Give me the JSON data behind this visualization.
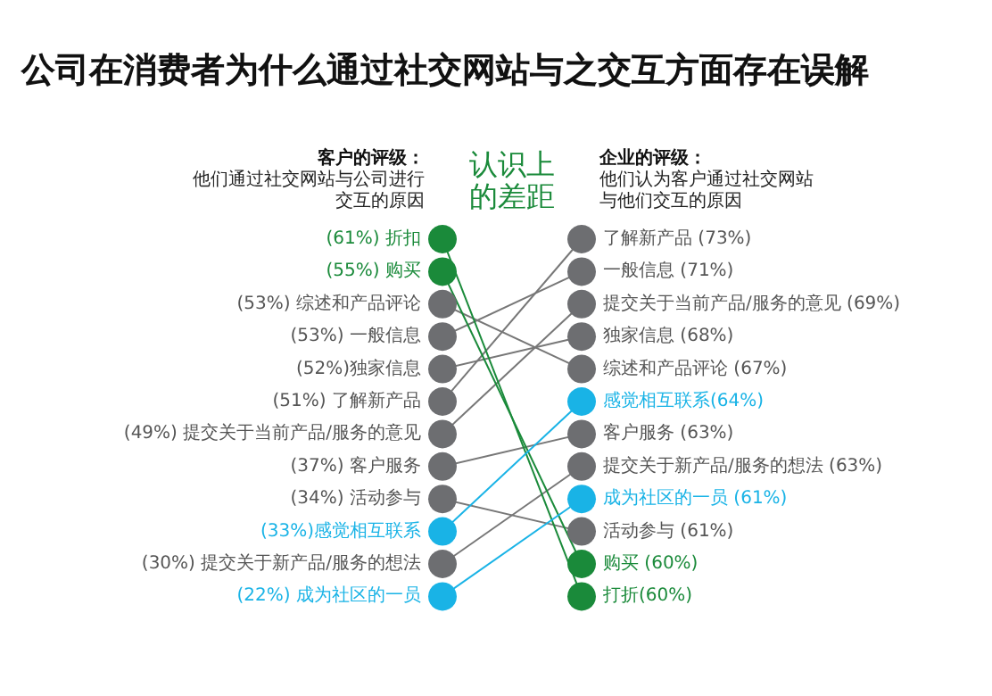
{
  "chart_data": {
    "type": "other",
    "title": "公司在消费者为什么通过社交网站与之交互方面存在误解",
    "categories": [
      "客户的评级：他们通过社交网站与公司进行交互的原因",
      "企业的评级：他们认为客户通过社交网站与他们交互的原因"
    ],
    "annotations": [
      "认识上的差距"
    ],
    "series": [
      {
        "color": "#1a8a3a",
        "values": [
          55,
          60
        ],
        "value_labels": [
          "(55%) 购买",
          "购买 (60%)"
        ]
      },
      {
        "color": "#1a8a3a",
        "values": [
          61,
          60
        ],
        "value_labels": [
          "(61%) 折扣",
          "打折(60%)"
        ]
      },
      {
        "color": "#6d6e71",
        "values": [
          53,
          67
        ],
        "value_labels": [
          "(53%) 综述和产品评论",
          "综述和产品评论 (67%)"
        ]
      },
      {
        "color": "#6d6e71",
        "values": [
          53,
          71
        ],
        "value_labels": [
          "(53%) 一般信息",
          "一般信息 (71%)"
        ]
      },
      {
        "color": "#6d6e71",
        "values": [
          52,
          68
        ],
        "value_labels": [
          "(52%)独家信息",
          "独家信息 (68%)"
        ]
      },
      {
        "color": "#6d6e71",
        "values": [
          51,
          73
        ],
        "value_labels": [
          "(51%) 了解新产品",
          "了解新产品 (73%)"
        ]
      },
      {
        "color": "#6d6e71",
        "values": [
          49,
          69
        ],
        "value_labels": [
          "(49%) 提交关于当前产品/服务的意见",
          "提交关于当前产品/服务的意见 (69%)"
        ]
      },
      {
        "color": "#6d6e71",
        "values": [
          37,
          63
        ],
        "value_labels": [
          "(37%) 客户服务",
          "客户服务 (63%)"
        ]
      },
      {
        "color": "#19b3e6",
        "values": [
          22,
          61
        ],
        "value_labels": [
          "(22%) 成为社区的一员",
          "成为社区的一员 (61%)"
        ]
      },
      {
        "color": "#6d6e71",
        "values": [
          34,
          61
        ],
        "value_labels": [
          "(34%) 活动参与",
          "活动参与 (61%)"
        ]
      },
      {
        "color": "#19b3e6",
        "values": [
          33,
          64
        ],
        "value_labels": [
          "(33%)感觉相互联系",
          "感觉相互联系(64%)"
        ]
      },
      {
        "color": "#6d6e71",
        "values": [
          30,
          63
        ],
        "value_labels": [
          "(30%) 提交关于新产品/服务的想法",
          "提交关于新产品/服务的想法 (63%)"
        ]
      }
    ]
  }
}
